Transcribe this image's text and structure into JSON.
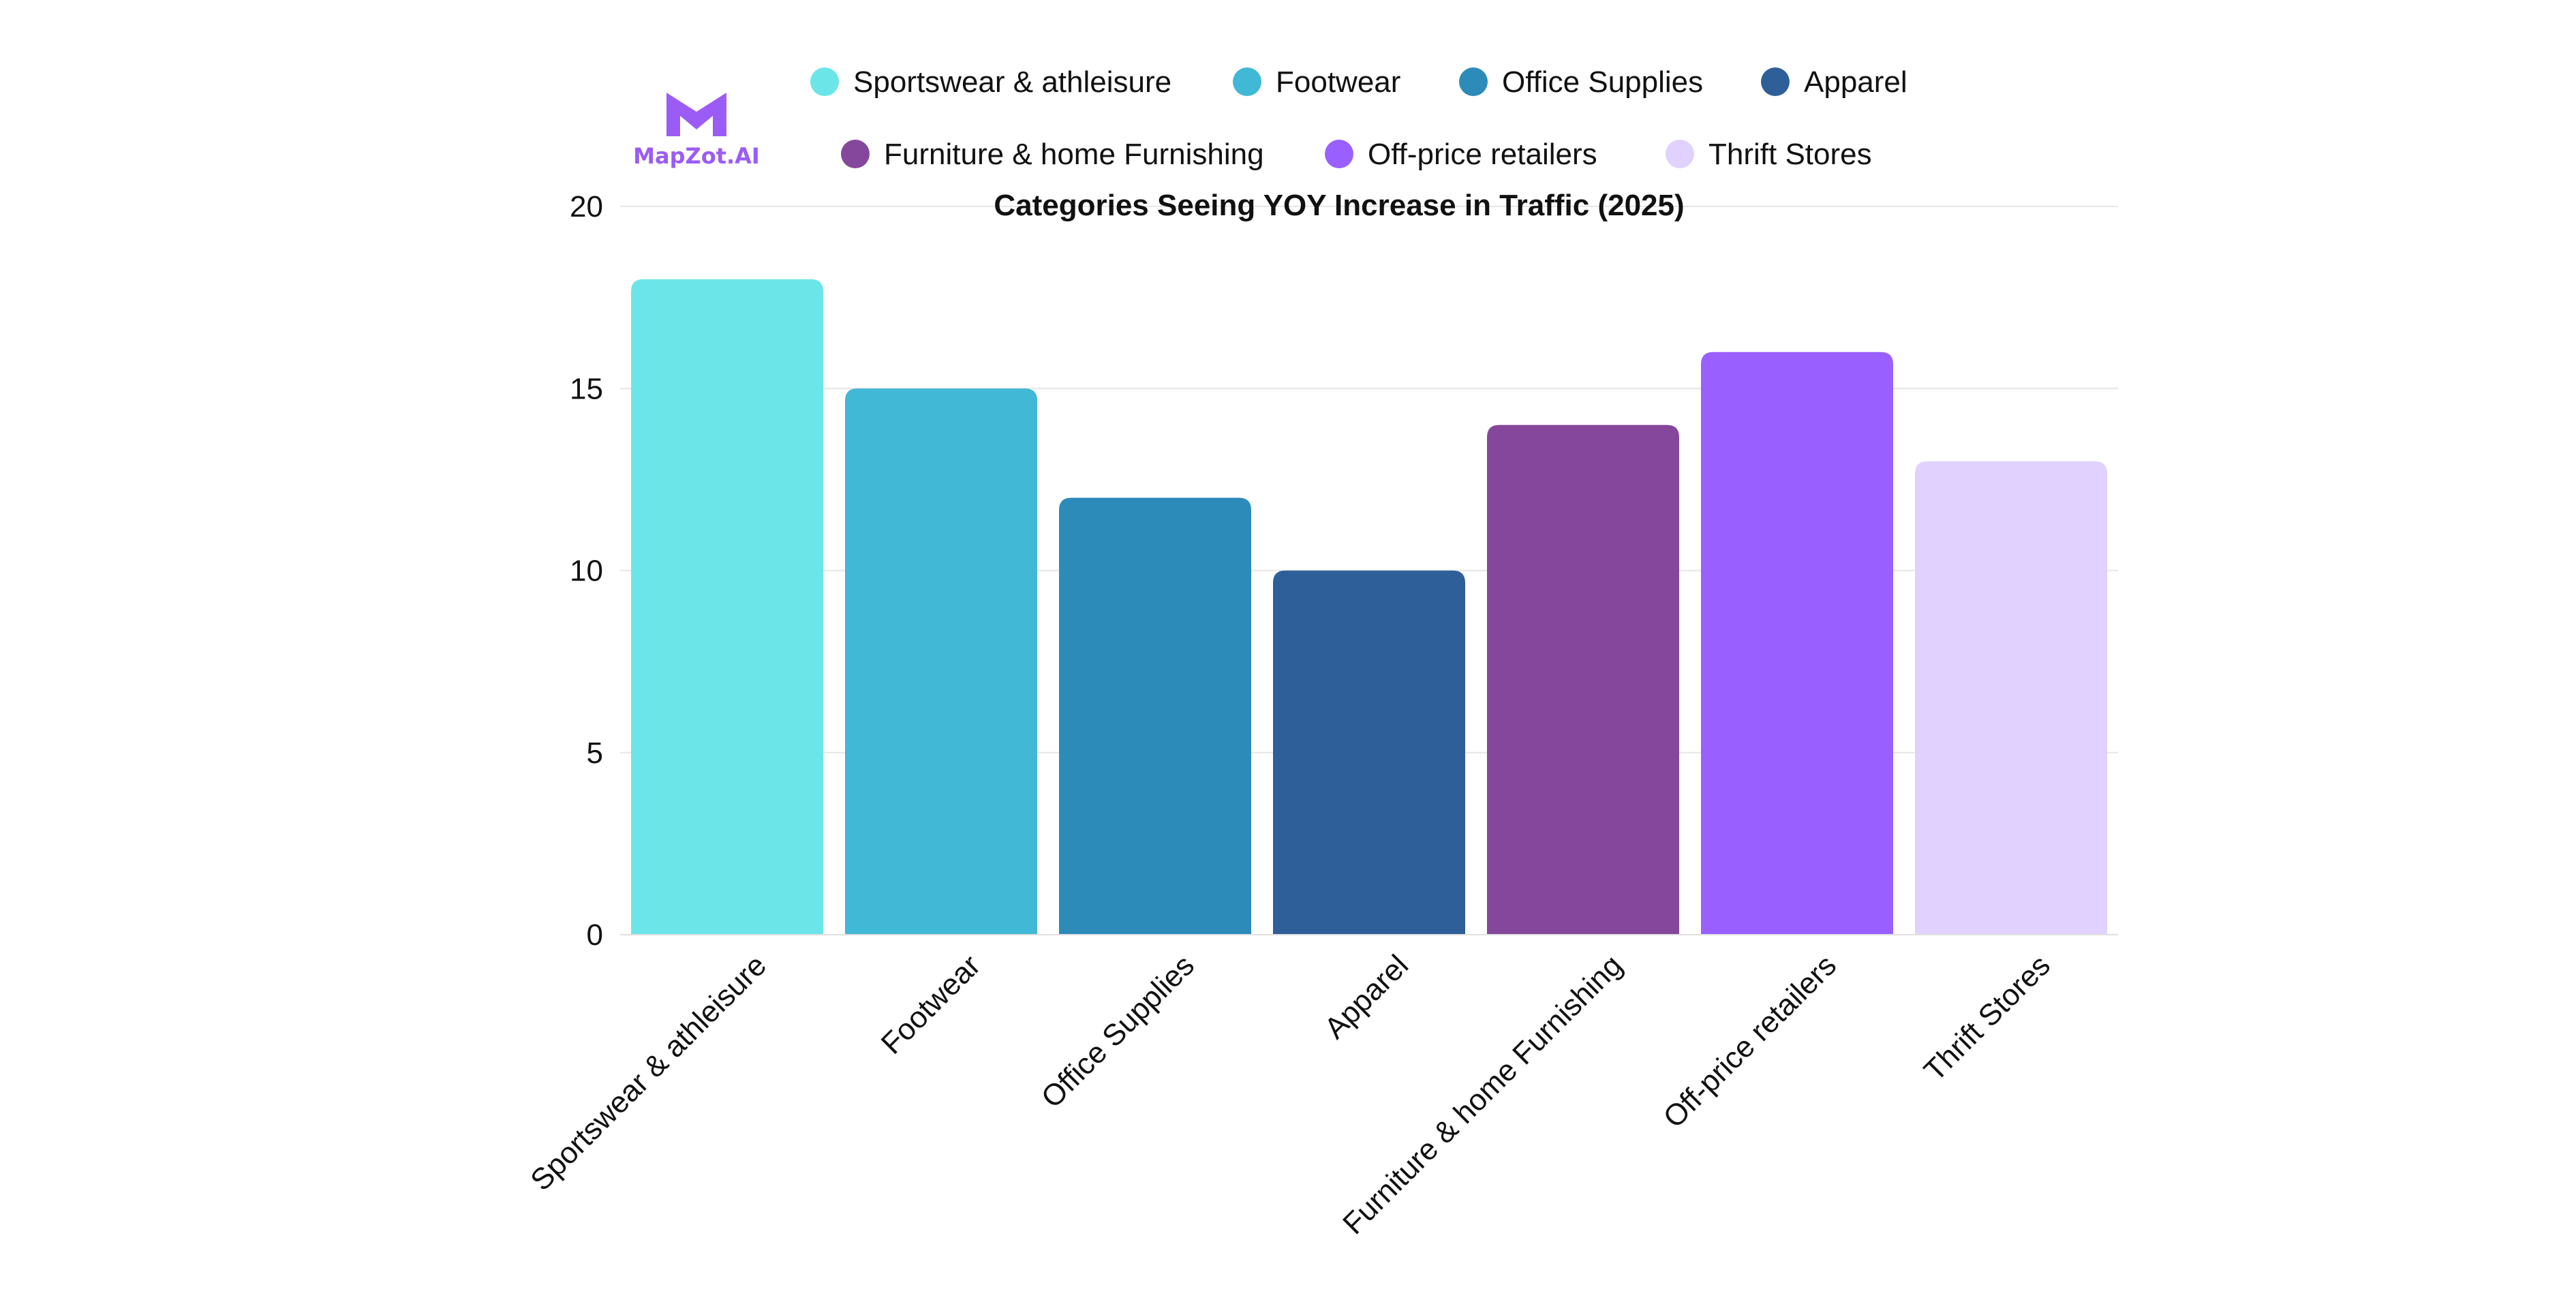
{
  "logo": {
    "text": "MapZot.AI",
    "color": "#9b5cf6"
  },
  "chart_data": {
    "type": "bar",
    "title": "Categories Seeing YOY Increase in Traffic (2025)",
    "xlabel": "",
    "ylabel": "",
    "categories": [
      "Sportswear & athleisure",
      "Footwear",
      "Office Supplies",
      "Apparel",
      "Furniture & home Furnishing",
      "Off-price retailers",
      "Thrift Stores"
    ],
    "values": [
      18,
      15,
      12,
      10,
      14,
      16,
      13
    ],
    "colors": [
      "#6ce5e8",
      "#41b8d5",
      "#2d8bba",
      "#2f5f98",
      "#85479b",
      "#9960ff",
      "#e1d1ff"
    ],
    "ylim": [
      0,
      20
    ],
    "yticks": [
      0,
      5,
      10,
      15,
      20
    ],
    "grid": true,
    "legend": {
      "placement": "top",
      "entries": [
        "Sportswear & athleisure",
        "Footwear",
        "Office Supplies",
        "Apparel",
        "Furniture & home Furnishing",
        "Off-price retailers",
        "Thrift Stores"
      ]
    }
  }
}
